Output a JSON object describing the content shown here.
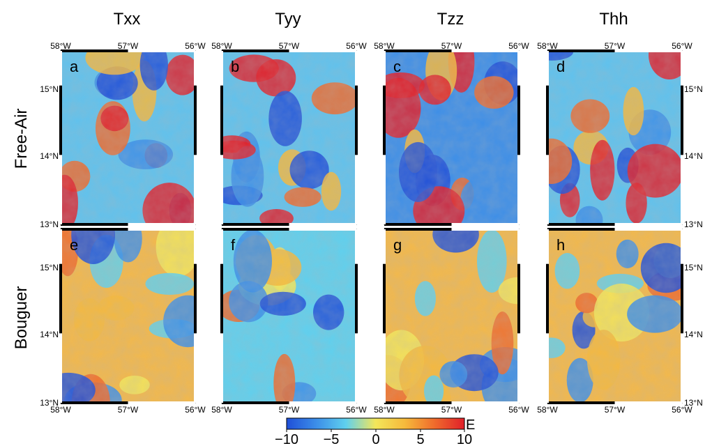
{
  "columns": [
    "Txx",
    "Tyy",
    "Tzz",
    "Thh"
  ],
  "rows": [
    "Free-Air",
    "Bouguer"
  ],
  "panel_letters": [
    [
      "a",
      "b",
      "c",
      "d"
    ],
    [
      "e",
      "f",
      "g",
      "h"
    ]
  ],
  "lon_ticks": [
    "58°W",
    "57°W",
    "56°W"
  ],
  "lat_ticks": [
    "15°N",
    "14°N",
    "13°N"
  ],
  "colorbar": {
    "unit": "E",
    "tick_labels": [
      "−10",
      "−5",
      "0",
      "5",
      "10"
    ],
    "range": [
      -10,
      10
    ],
    "colors": [
      "#1f4fd8",
      "#3c8ee8",
      "#5fd0ee",
      "#f3e65a",
      "#f6b93b",
      "#ef6a2c",
      "#e0202a"
    ]
  },
  "colors": {
    "frame_black": "#000000",
    "frame_white": "#ffffff",
    "hillshade": "#7a7a7a"
  }
}
